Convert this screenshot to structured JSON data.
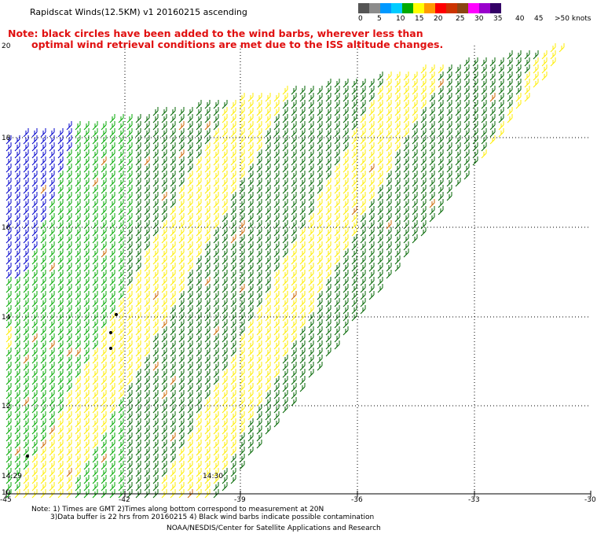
{
  "header": {
    "title": "Rapidscat Winds(12.5KM) v1 20160215 ascending"
  },
  "legend": {
    "unit": "knots",
    "labels": [
      "0",
      "5",
      "10",
      "15",
      "20",
      "25",
      "30",
      "35",
      "40",
      "45",
      ">50 knots"
    ],
    "colors": [
      "#555555",
      "#8c8c8c",
      "#0099ff",
      "#00ccff",
      "#00aa00",
      "#ffff00",
      "#ff9900",
      "#ff0000",
      "#cc3300",
      "#8b4513",
      "#ff00ff",
      "#9900cc",
      "#330066"
    ]
  },
  "note": {
    "line1": "Note: black circles have been added to the wind barbs, wherever less than",
    "line2": "optimal wind retrieval conditions are met due to the ISS altitude changes."
  },
  "map": {
    "lat_labels": [
      "20",
      "18",
      "16",
      "14",
      "12",
      "10"
    ],
    "lon_labels": [
      "-45",
      "-42",
      "-39",
      "-36",
      "-33",
      "-30"
    ],
    "time_labels": [
      "14:29",
      "14:30"
    ],
    "barb_colors": {
      "blue": "#0000cc",
      "green": "#00aa00",
      "dark_green": "#006600",
      "yellow": "#ffee00",
      "orange": "#cc6600"
    }
  },
  "footer": {
    "line1": "Note: 1) Times are GMT 2)Times along bottom correspond to measurement at 20N",
    "line2": "3)Data buffer is 22 hrs from 20160215 4) Black wind barbs indicate possible contamination",
    "line3": "NOAA/NESDIS/Center for Satellite Applications and Research"
  }
}
